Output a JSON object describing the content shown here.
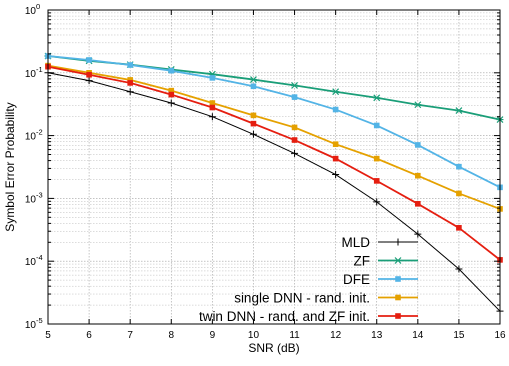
{
  "chart_data": {
    "type": "line",
    "title": "",
    "xlabel": "SNR (dB)",
    "ylabel": "Symbol Error Probability",
    "xlim": [
      5,
      16
    ],
    "ylim": [
      1e-05,
      1
    ],
    "y_scale": "log",
    "x_ticks": [
      5,
      6,
      7,
      8,
      9,
      10,
      11,
      12,
      13,
      14,
      15,
      16
    ],
    "y_ticks": [
      {
        "value": 1,
        "base": "10",
        "exp": "0"
      },
      {
        "value": 0.1,
        "base": "10",
        "exp": "-1"
      },
      {
        "value": 0.01,
        "base": "10",
        "exp": "-2"
      },
      {
        "value": 0.001,
        "base": "10",
        "exp": "-3"
      },
      {
        "value": 0.0001,
        "base": "10",
        "exp": "-4"
      },
      {
        "value": 1e-05,
        "base": "10",
        "exp": "-5"
      }
    ],
    "grid": true,
    "legend_position": "bottom-right",
    "x": [
      5,
      6,
      7,
      8,
      9,
      10,
      11,
      12,
      13,
      14,
      15,
      16
    ],
    "series": [
      {
        "name": "MLD",
        "color": "#000000",
        "marker": "plus",
        "values": [
          0.1,
          0.075,
          0.05,
          0.033,
          0.02,
          0.0105,
          0.0052,
          0.0024,
          0.00088,
          0.00027,
          7.5e-05,
          1.6e-05
        ]
      },
      {
        "name": "ZF",
        "color": "#1a9e78",
        "marker": "x",
        "values": [
          0.185,
          0.155,
          0.135,
          0.113,
          0.095,
          0.078,
          0.063,
          0.05,
          0.04,
          0.031,
          0.025,
          0.018
        ]
      },
      {
        "name": "DFE",
        "color": "#53b4e6",
        "marker": "square",
        "values": [
          0.185,
          0.16,
          0.133,
          0.108,
          0.083,
          0.061,
          0.041,
          0.026,
          0.0145,
          0.0071,
          0.0032,
          0.0015
        ]
      },
      {
        "name": "single DNN - rand. init.",
        "color": "#e5a100",
        "marker": "square",
        "values": [
          0.13,
          0.1,
          0.077,
          0.052,
          0.033,
          0.021,
          0.0135,
          0.0073,
          0.0043,
          0.0023,
          0.0012,
          0.00068
        ]
      },
      {
        "name": "twin DNN - rand. and ZF init.",
        "color": "#e51e10",
        "marker": "square",
        "values": [
          0.125,
          0.093,
          0.069,
          0.045,
          0.028,
          0.0155,
          0.0085,
          0.0043,
          0.0019,
          0.00082,
          0.00034,
          0.000105
        ]
      }
    ]
  }
}
